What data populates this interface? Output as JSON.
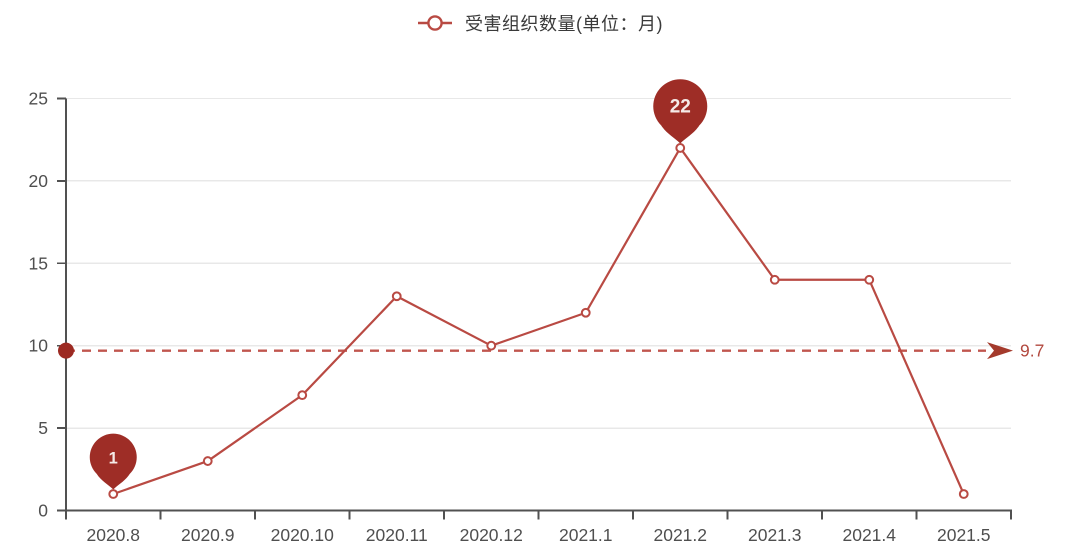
{
  "legend": {
    "label": "受害组织数量(单位：月)"
  },
  "chart_data": {
    "type": "line",
    "title": "",
    "categories": [
      "2020.8",
      "2020.9",
      "2020.10",
      "2020.11",
      "2020.12",
      "2021.1",
      "2021.2",
      "2021.3",
      "2021.4",
      "2021.5"
    ],
    "series": [
      {
        "name": "受害组织数量(单位：月)",
        "values": [
          1,
          3,
          7,
          13,
          10,
          12,
          22,
          14,
          14,
          1
        ]
      }
    ],
    "xlabel": "",
    "ylabel": "",
    "ylim": [
      0,
      25
    ],
    "y_ticks": [
      0,
      5,
      10,
      15,
      20,
      25
    ],
    "grid": "horizontal",
    "legend_position": "top-center",
    "average_line": {
      "value": 9.7,
      "label": "9.7"
    },
    "min_marker": {
      "category": "2020.8",
      "value": 1,
      "label": "1"
    },
    "max_marker": {
      "category": "2021.2",
      "value": 22,
      "label": "22"
    },
    "colors": {
      "line": "#b94a43",
      "marker_fill": "#ffffff",
      "pin": "#9e2d26",
      "pin_text": "#f5eae7",
      "avg_dash": "#c0564e",
      "avg_dot": "#9c2a22",
      "avg_arrow": "#a43a2c",
      "avg_text": "#b2493f",
      "axis": "#515151",
      "tick_label": "#4f4f4f",
      "legend_text": "#3a3a3a",
      "grid": "#e8e8e8"
    }
  }
}
